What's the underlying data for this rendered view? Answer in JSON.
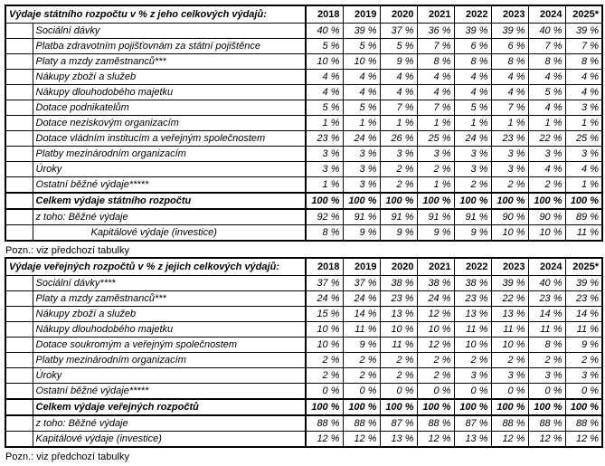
{
  "page": {
    "background": "#ffffff",
    "text_color": "#000000",
    "border_color": "#000000"
  },
  "tables": [
    {
      "title": "Výdaje státního rozpočtu v % z jeho celkových výdajů:",
      "years": [
        "2018",
        "2019",
        "2020",
        "2021",
        "2022",
        "2023",
        "2024",
        "2025*"
      ],
      "value_suffix": " %",
      "rows": [
        {
          "label": "Sociální dávky",
          "values": [
            40,
            39,
            37,
            36,
            39,
            39,
            40,
            39
          ],
          "bold": false,
          "indent": false
        },
        {
          "label": "Platba zdravotním pojišťovnám za státní pojištěnce",
          "values": [
            5,
            5,
            5,
            7,
            6,
            6,
            7,
            7
          ],
          "bold": false,
          "indent": false
        },
        {
          "label": "Platy a mzdy zaměstnanců***",
          "values": [
            10,
            10,
            9,
            8,
            8,
            8,
            8,
            8
          ],
          "bold": false,
          "indent": false
        },
        {
          "label": "Nákupy zboží a služeb",
          "values": [
            4,
            4,
            4,
            4,
            4,
            4,
            4,
            4
          ],
          "bold": false,
          "indent": false
        },
        {
          "label": "Nákupy dlouhodobého majetku",
          "values": [
            4,
            4,
            4,
            4,
            4,
            4,
            5,
            4
          ],
          "bold": false,
          "indent": false
        },
        {
          "label": "Dotace podnikatelům",
          "values": [
            5,
            5,
            7,
            7,
            5,
            7,
            4,
            3
          ],
          "bold": false,
          "indent": false
        },
        {
          "label": "Dotace neziskovým organizacím",
          "values": [
            1,
            1,
            1,
            1,
            1,
            1,
            1,
            1
          ],
          "bold": false,
          "indent": false
        },
        {
          "label": "Dotace vládním institucím a veřejným společnostem",
          "values": [
            23,
            24,
            26,
            25,
            24,
            23,
            22,
            25
          ],
          "bold": false,
          "indent": false
        },
        {
          "label": "Platby mezinárodním organizacím",
          "values": [
            3,
            3,
            3,
            3,
            3,
            3,
            3,
            3
          ],
          "bold": false,
          "indent": false
        },
        {
          "label": "Úroky",
          "values": [
            3,
            3,
            2,
            2,
            3,
            3,
            4,
            4
          ],
          "bold": false,
          "indent": false
        },
        {
          "label": "Ostatní běžné výdaje*****",
          "values": [
            1,
            3,
            2,
            1,
            2,
            2,
            2,
            1
          ],
          "bold": false,
          "indent": false
        },
        {
          "label": "Celkem výdaje státního rozpočtu",
          "values": [
            100,
            100,
            100,
            100,
            100,
            100,
            100,
            100
          ],
          "bold": true,
          "indent": false
        },
        {
          "label": "z toho: Běžné výdaje",
          "values": [
            92,
            91,
            91,
            91,
            91,
            90,
            90,
            89
          ],
          "bold": false,
          "indent": false
        },
        {
          "label": "Kapitálové výdaje (investice)",
          "values": [
            8,
            9,
            9,
            9,
            9,
            10,
            10,
            11
          ],
          "bold": false,
          "indent": true
        }
      ],
      "note": "Pozn.: viz předchozí tabulky"
    },
    {
      "title": "Výdaje veřejných rozpočtů v % z jejich celkových výdajů:",
      "years": [
        "2018",
        "2019",
        "2020",
        "2021",
        "2022",
        "2023",
        "2024",
        "2025*"
      ],
      "value_suffix": " %",
      "rows": [
        {
          "label": "Sociální dávky****",
          "values": [
            37,
            37,
            38,
            38,
            38,
            39,
            40,
            39
          ],
          "bold": false,
          "indent": false
        },
        {
          "label": "Platy a mzdy zaměstnanců***",
          "values": [
            24,
            24,
            23,
            24,
            23,
            22,
            23,
            23
          ],
          "bold": false,
          "indent": false
        },
        {
          "label": "Nákupy zboží a služeb",
          "values": [
            15,
            14,
            13,
            12,
            13,
            13,
            14,
            14
          ],
          "bold": false,
          "indent": false
        },
        {
          "label": "Nákupy dlouhodobého majetku",
          "values": [
            10,
            11,
            10,
            10,
            11,
            11,
            11,
            11
          ],
          "bold": false,
          "indent": false
        },
        {
          "label": "Dotace soukromým a veřejným společnostem",
          "values": [
            10,
            9,
            11,
            12,
            10,
            10,
            8,
            9
          ],
          "bold": false,
          "indent": false
        },
        {
          "label": "Platby mezinárodním organizacím",
          "values": [
            2,
            2,
            2,
            2,
            2,
            2,
            2,
            2
          ],
          "bold": false,
          "indent": false
        },
        {
          "label": "Úroky",
          "values": [
            2,
            2,
            2,
            2,
            3,
            3,
            3,
            3
          ],
          "bold": false,
          "indent": false
        },
        {
          "label": "Ostatní běžné výdaje*****",
          "values": [
            0,
            0,
            0,
            0,
            0,
            0,
            0,
            0
          ],
          "bold": false,
          "indent": false
        },
        {
          "label": "Celkem výdaje veřejných rozpočtů",
          "values": [
            100,
            100,
            100,
            100,
            100,
            100,
            100,
            100
          ],
          "bold": true,
          "indent": false
        },
        {
          "label": "z toho: Běžné výdaje",
          "values": [
            88,
            88,
            87,
            88,
            87,
            88,
            88,
            88
          ],
          "bold": false,
          "indent": false
        },
        {
          "label": "Kapitálové výdaje (investice)",
          "values": [
            12,
            12,
            13,
            12,
            13,
            12,
            12,
            12
          ],
          "bold": false,
          "indent": false
        }
      ],
      "note": "Pozn.: viz předchozí tabulky"
    }
  ]
}
